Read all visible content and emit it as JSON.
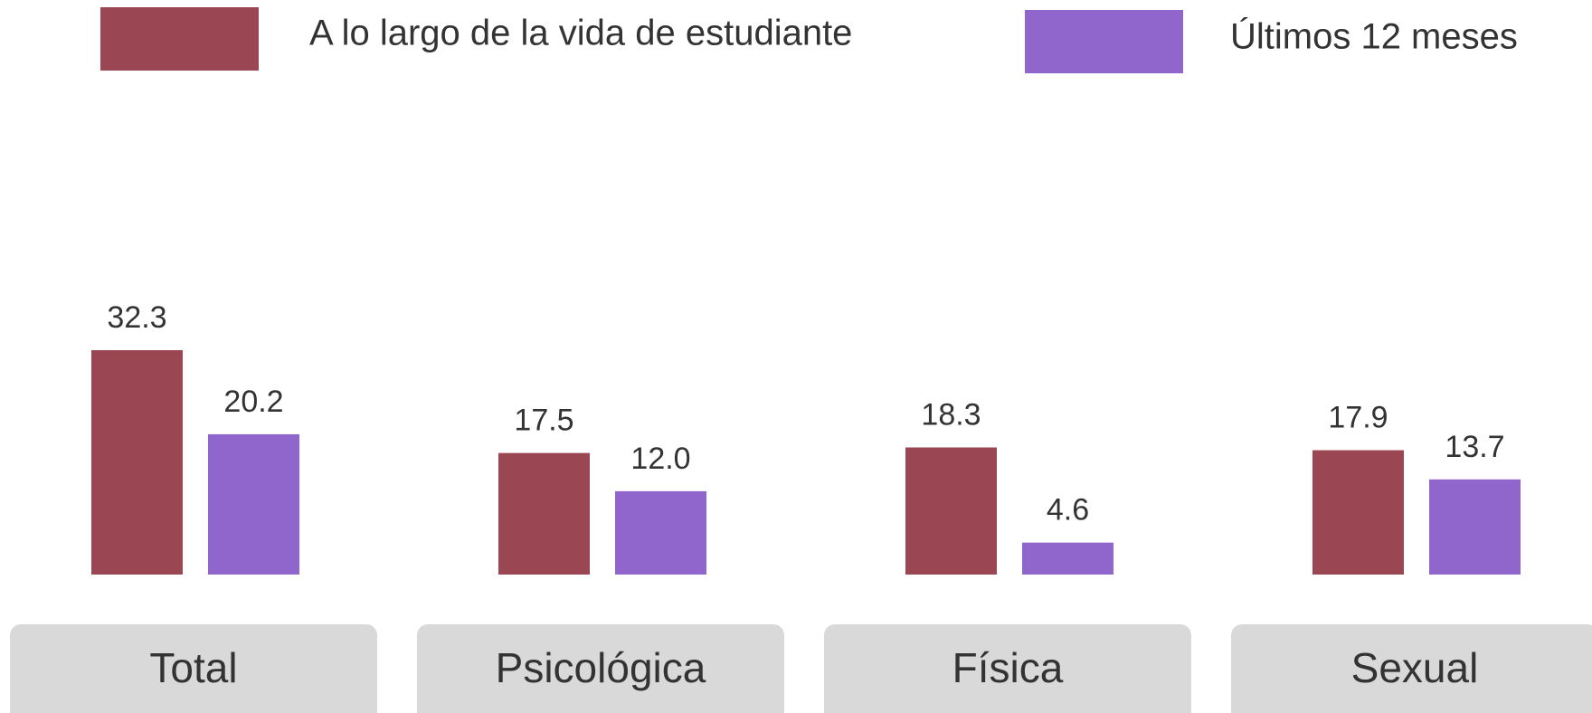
{
  "chart_data": {
    "type": "bar",
    "categories": [
      "Total",
      "Psicológica",
      "Física",
      "Sexual"
    ],
    "series": [
      {
        "name": "A lo largo de la vida de estudiante",
        "color": "#9b4653",
        "values": [
          32.3,
          17.5,
          18.3,
          17.9
        ]
      },
      {
        "name": "Últimos 12 meses",
        "color": "#9166cc",
        "values": [
          20.2,
          12.0,
          4.6,
          13.7
        ],
        "value_labels": [
          "20.2",
          "12.0",
          "4.6",
          "13.7"
        ]
      }
    ],
    "legend": "top"
  }
}
